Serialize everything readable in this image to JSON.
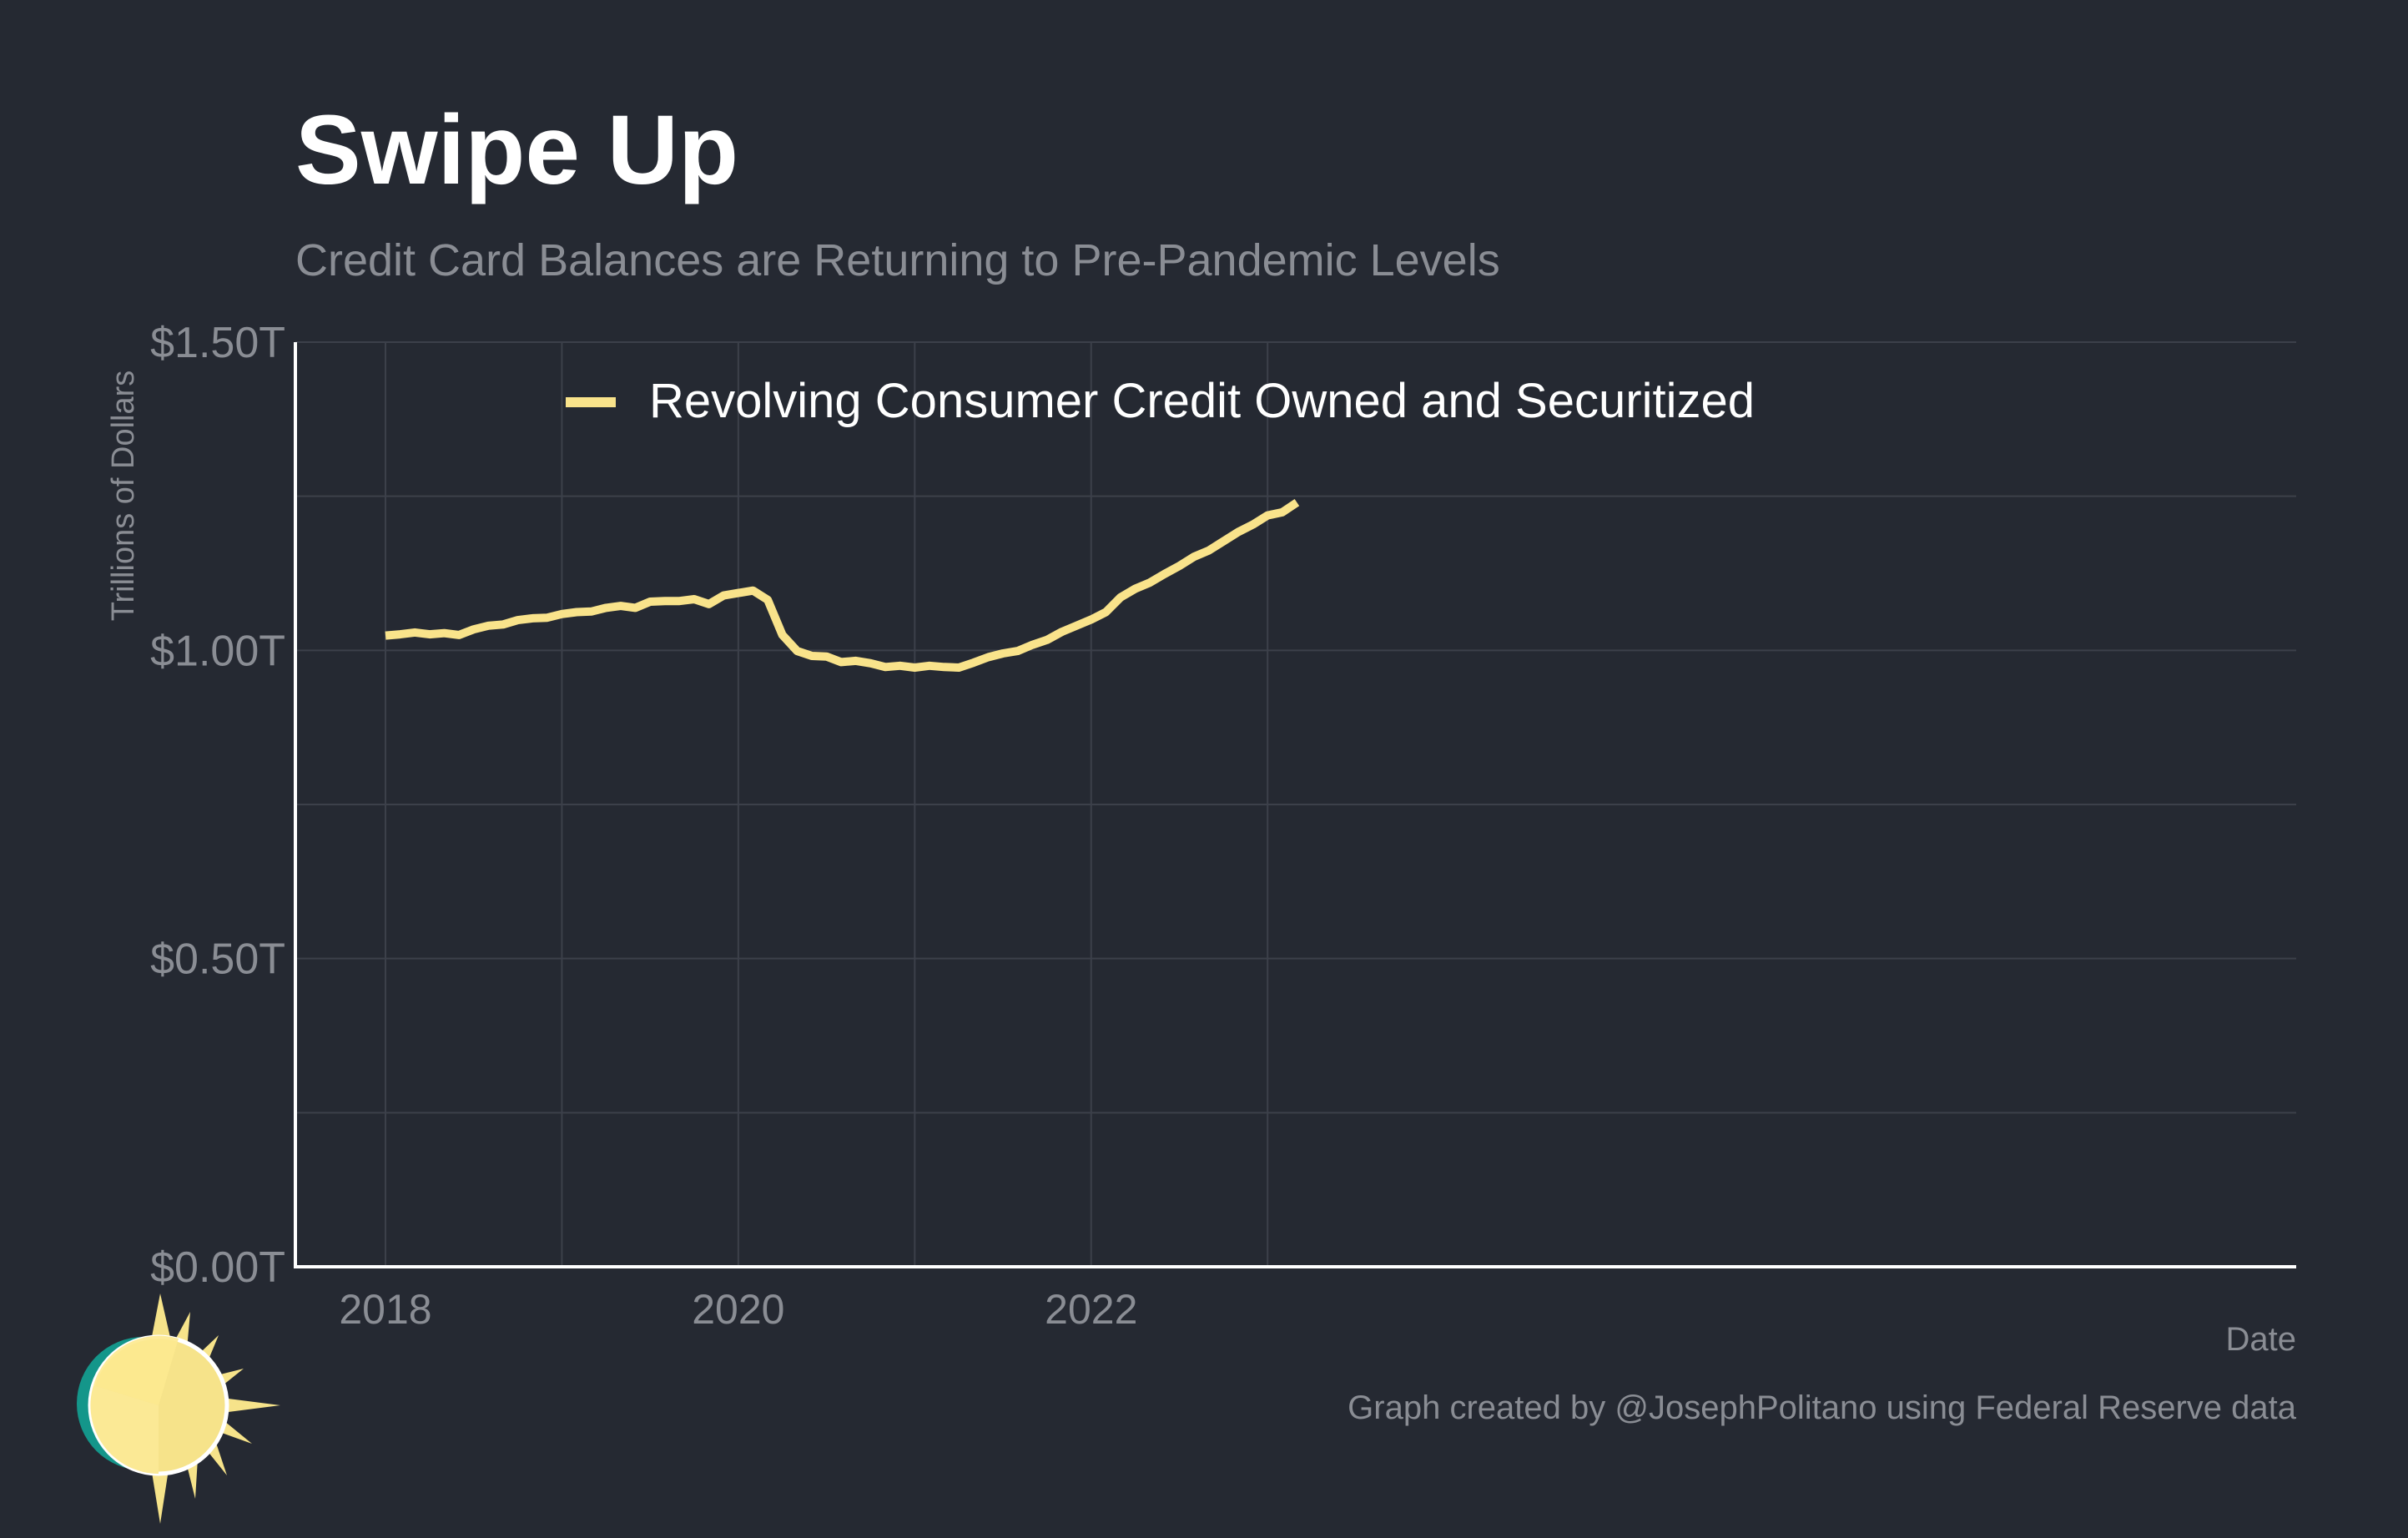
{
  "title": "Swipe Up",
  "subtitle": "Credit Card Balances are Returning to Pre-Pandemic Levels",
  "caption": "Graph created by @JosephPolitano using Federal Reserve data",
  "logo": "sun-logo-icon",
  "colors": {
    "background": "#252932",
    "line": "#f9e38b",
    "grid": "#3c404a",
    "axis": "#ffffff",
    "muted_text": "#8a8d94",
    "logo_ring": "#14968a",
    "logo_sun": "#f6e38a"
  },
  "chart_data": {
    "type": "line",
    "title": "Swipe Up",
    "subtitle": "Credit Card Balances are Returning to Pre-Pandemic Levels",
    "xlabel": "Date",
    "ylabel": "Trillions of Dollars",
    "ylim": [
      0,
      1.5
    ],
    "y_ticks": [
      {
        "value": 0,
        "label": "$0.00T"
      },
      {
        "value": 0.5,
        "label": "$0.50T"
      },
      {
        "value": 1.0,
        "label": "$1.00T"
      },
      {
        "value": 1.5,
        "label": "$1.50T"
      }
    ],
    "x_ticks": [
      {
        "value": "2018-01",
        "label": "2018"
      },
      {
        "value": "2020-01",
        "label": "2020"
      },
      {
        "value": "2022-01",
        "label": "2022"
      }
    ],
    "grid": true,
    "legend_position": "top-left",
    "series": [
      {
        "name": "Revolving Consumer Credit Owned and Securitized",
        "color": "#f9e38b",
        "x": [
          "2018-01",
          "2018-02",
          "2018-03",
          "2018-04",
          "2018-05",
          "2018-06",
          "2018-07",
          "2018-08",
          "2018-09",
          "2018-10",
          "2018-11",
          "2018-12",
          "2019-01",
          "2019-02",
          "2019-03",
          "2019-04",
          "2019-05",
          "2019-06",
          "2019-07",
          "2019-08",
          "2019-09",
          "2019-10",
          "2019-11",
          "2019-12",
          "2020-01",
          "2020-02",
          "2020-03",
          "2020-04",
          "2020-05",
          "2020-06",
          "2020-07",
          "2020-08",
          "2020-09",
          "2020-10",
          "2020-11",
          "2020-12",
          "2021-01",
          "2021-02",
          "2021-03",
          "2021-04",
          "2021-05",
          "2021-06",
          "2021-07",
          "2021-08",
          "2021-09",
          "2021-10",
          "2021-11",
          "2021-12",
          "2022-01",
          "2022-02",
          "2022-03",
          "2022-04",
          "2022-05",
          "2022-06",
          "2022-07",
          "2022-08",
          "2022-09",
          "2022-10",
          "2022-11",
          "2022-12",
          "2023-01",
          "2023-02",
          "2023-03"
        ],
        "values": [
          1.024,
          1.026,
          1.029,
          1.026,
          1.028,
          1.025,
          1.034,
          1.04,
          1.042,
          1.049,
          1.052,
          1.053,
          1.059,
          1.062,
          1.063,
          1.069,
          1.072,
          1.069,
          1.079,
          1.08,
          1.08,
          1.083,
          1.075,
          1.089,
          1.093,
          1.097,
          1.082,
          1.025,
          0.999,
          0.991,
          0.99,
          0.981,
          0.983,
          0.979,
          0.973,
          0.975,
          0.972,
          0.975,
          0.973,
          0.972,
          0.98,
          0.989,
          0.995,
          0.999,
          1.009,
          1.017,
          1.03,
          1.04,
          1.05,
          1.062,
          1.086,
          1.1,
          1.11,
          1.124,
          1.137,
          1.152,
          1.162,
          1.177,
          1.192,
          1.204,
          1.219,
          1.224,
          1.24
        ]
      }
    ]
  }
}
